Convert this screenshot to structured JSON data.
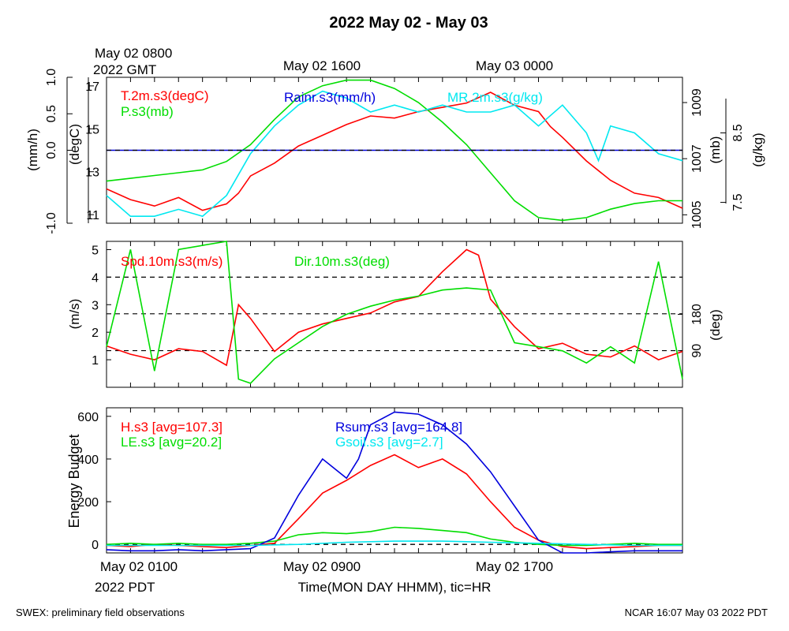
{
  "title": "2022 May 02 - May 03",
  "footer_left": "SWEX: preliminary field observations",
  "footer_right": "NCAR 16:07 May 03 2022 PDT",
  "colors": {
    "red": "#ff0000",
    "green": "#00dd00",
    "blue": "#0000dd",
    "cyan": "#00e8f0",
    "black": "#000000"
  },
  "chart_data": [
    {
      "type": "line",
      "panel": "top",
      "top_time_labels": [
        {
          "line1": "May 02 0800",
          "line2": "2022 GMT"
        },
        {
          "line1": "May 02 1600",
          "line2": ""
        },
        {
          "line1": "May 03 0000",
          "line2": ""
        }
      ],
      "x_range_hours_pdt": [
        0,
        24
      ],
      "axes": {
        "rain_mm_h": {
          "label": "(mm/h)",
          "ticks": [
            "1.0",
            "0.5",
            "0.0",
            "-1.0"
          ],
          "values": [
            1.0,
            0.5,
            0.0,
            -1.0
          ],
          "range": [
            -1.0,
            1.0
          ]
        },
        "temp_degC": {
          "label": "(degC)",
          "ticks": [
            "17",
            "15",
            "13",
            "11"
          ],
          "values": [
            17,
            15,
            13,
            11
          ],
          "range": [
            10.6,
            17.4
          ]
        },
        "pressure_mb": {
          "label": "(mb)",
          "ticks": [
            "1009",
            "1007",
            "1005"
          ],
          "values": [
            1009,
            1007,
            1005
          ],
          "range": [
            1004.7,
            1009.9
          ]
        },
        "mixing_g_kg": {
          "label": "(g/kg)",
          "ticks": [
            "8.5",
            "7.5"
          ],
          "values": [
            8.5,
            7.5
          ],
          "range": [
            7.2,
            9.3
          ]
        }
      },
      "legend": [
        {
          "text": "T.2m.s3(degC)",
          "color": "#ff0000"
        },
        {
          "text": "P.s3(mb)",
          "color": "#00dd00"
        },
        {
          "text": "Rainr.s3(mm/h)",
          "color": "#0000dd"
        },
        {
          "text": "MR.2m.s3(g/kg)",
          "color": "#00e8f0"
        }
      ],
      "series": [
        {
          "name": "T.2m.s3(degC)",
          "axis": "temp_degC",
          "color": "#ff0000",
          "x": [
            0,
            1,
            2,
            3,
            4,
            5,
            5.5,
            6,
            7,
            8,
            9,
            10,
            11,
            12,
            13,
            14,
            15,
            16,
            17,
            18,
            18.5,
            19,
            20,
            21,
            22,
            23,
            24
          ],
          "y": [
            12.2,
            11.7,
            11.4,
            11.8,
            11.2,
            11.5,
            12.0,
            12.8,
            13.4,
            14.2,
            14.7,
            15.2,
            15.6,
            15.5,
            15.8,
            16.0,
            16.2,
            16.7,
            16.1,
            15.8,
            15.1,
            14.6,
            13.5,
            12.6,
            12.0,
            11.8,
            11.3
          ]
        },
        {
          "name": "P.s3(mb)",
          "axis": "pressure_mb",
          "color": "#00dd00",
          "x": [
            0,
            1,
            2,
            3,
            4,
            5,
            6,
            7,
            8,
            9,
            10,
            11,
            12,
            13,
            14,
            15,
            16,
            17,
            18,
            19,
            20,
            21,
            22,
            23,
            24
          ],
          "y": [
            1006.2,
            1006.3,
            1006.4,
            1006.5,
            1006.6,
            1006.9,
            1007.5,
            1008.4,
            1009.2,
            1009.6,
            1009.8,
            1009.8,
            1009.5,
            1009.0,
            1008.3,
            1007.5,
            1006.5,
            1005.5,
            1004.9,
            1004.8,
            1004.9,
            1005.2,
            1005.4,
            1005.5,
            1005.5
          ]
        },
        {
          "name": "MR.2m.s3(g/kg)",
          "axis": "mixing_g_kg",
          "color": "#00e8f0",
          "x": [
            0,
            1,
            2,
            3,
            4,
            5,
            6,
            7,
            8,
            9,
            10,
            11,
            12,
            13,
            14,
            15,
            16,
            17,
            18,
            19,
            20,
            20.5,
            21,
            22,
            23,
            24
          ],
          "y": [
            7.6,
            7.3,
            7.3,
            7.4,
            7.3,
            7.6,
            8.2,
            8.6,
            8.9,
            9.1,
            9.0,
            8.8,
            8.9,
            8.8,
            8.9,
            8.8,
            8.8,
            8.9,
            8.6,
            8.9,
            8.5,
            8.1,
            8.6,
            8.5,
            8.2,
            8.1
          ]
        },
        {
          "name": "Rainr.s3(mm/h)",
          "axis": "rain_mm_h",
          "color": "#0000dd",
          "x": [
            0,
            24
          ],
          "y": [
            0,
            0
          ]
        }
      ]
    },
    {
      "type": "line",
      "panel": "middle",
      "x_range_hours_pdt": [
        0,
        24
      ],
      "axes": {
        "speed_m_s": {
          "label": "(m/s)",
          "ticks": [
            "5",
            "4",
            "3",
            "2",
            "1"
          ],
          "values": [
            5,
            4,
            3,
            2,
            1
          ],
          "range": [
            0,
            5.3
          ]
        },
        "dir_deg": {
          "label": "(deg)",
          "ticks": [
            "180",
            "90"
          ],
          "values": [
            180,
            90
          ],
          "range": [
            0,
            360
          ]
        }
      },
      "reference_lines_m_s": [
        4.0,
        2.67,
        1.33
      ],
      "legend": [
        {
          "text": "Spd.10m.s3(m/s)",
          "color": "#ff0000"
        },
        {
          "text": "Dir.10m.s3(deg)",
          "color": "#00dd00"
        }
      ],
      "series": [
        {
          "name": "Spd.10m.s3(m/s)",
          "axis": "speed_m_s",
          "color": "#ff0000",
          "x": [
            0,
            1,
            2,
            3,
            4,
            5,
            5.5,
            6,
            7,
            8,
            9,
            10,
            11,
            12,
            13,
            14,
            15,
            15.5,
            16,
            17,
            18,
            19,
            20,
            21,
            22,
            23,
            24
          ],
          "y": [
            1.5,
            1.2,
            1.0,
            1.4,
            1.3,
            0.8,
            3.0,
            2.5,
            1.3,
            2.0,
            2.3,
            2.5,
            2.7,
            3.1,
            3.3,
            4.2,
            5.0,
            4.8,
            3.2,
            2.2,
            1.4,
            1.6,
            1.2,
            1.1,
            1.5,
            1.0,
            1.3
          ]
        },
        {
          "name": "Dir.10m.s3(deg)",
          "axis": "dir_deg",
          "color": "#00dd00",
          "x": [
            0,
            1,
            2,
            3,
            4,
            5,
            5.5,
            6,
            7,
            8,
            9,
            10,
            11,
            12,
            13,
            14,
            15,
            16,
            17,
            18,
            19,
            20,
            21,
            22,
            23,
            24
          ],
          "y": [
            100,
            340,
            40,
            340,
            350,
            360,
            20,
            10,
            70,
            110,
            150,
            180,
            200,
            215,
            225,
            240,
            245,
            240,
            110,
            100,
            90,
            60,
            100,
            60,
            310,
            20
          ]
        }
      ]
    },
    {
      "type": "line",
      "panel": "bottom",
      "x_range_hours_pdt": [
        0,
        24
      ],
      "x_tick_labels": [
        {
          "line1": "May 02 0100",
          "line2": "2022 PDT"
        },
        {
          "line1": "May 02 0900",
          "line2": ""
        },
        {
          "line1": "May 02 1700",
          "line2": ""
        }
      ],
      "xlabel": "Time(MON DAY HHMM), tic=HR",
      "ylabel": "Energy Budget",
      "y_ticks": [
        0,
        200,
        400,
        600
      ],
      "ylim": [
        -40,
        640
      ],
      "legend": [
        {
          "text": "H.s3 [avg=107.3]",
          "color": "#ff0000"
        },
        {
          "text": "LE.s3 [avg=20.2]",
          "color": "#00dd00"
        },
        {
          "text": "Rsum.s3 [avg=164.8]",
          "color": "#0000dd"
        },
        {
          "text": "Gsoil.s3 [avg=2.7]",
          "color": "#00e8f0"
        }
      ],
      "series": [
        {
          "name": "H.s3 [avg=107.3]",
          "color": "#ff0000",
          "x": [
            0,
            1,
            2,
            3,
            4,
            5,
            6,
            7,
            8,
            9,
            10,
            11,
            12,
            13,
            14,
            15,
            16,
            17,
            18,
            19,
            20,
            21,
            22,
            23,
            24
          ],
          "y": [
            -5,
            -10,
            0,
            -5,
            -10,
            -15,
            -5,
            5,
            120,
            240,
            300,
            370,
            420,
            360,
            400,
            330,
            200,
            80,
            20,
            -10,
            -20,
            -15,
            -10,
            -5,
            -5
          ]
        },
        {
          "name": "LE.s3 [avg=20.2]",
          "color": "#00dd00",
          "x": [
            0,
            1,
            2,
            3,
            4,
            5,
            6,
            7,
            8,
            9,
            10,
            11,
            12,
            13,
            14,
            15,
            16,
            17,
            18,
            19,
            20,
            21,
            22,
            23,
            24
          ],
          "y": [
            0,
            5,
            0,
            5,
            0,
            0,
            5,
            15,
            45,
            55,
            50,
            60,
            80,
            75,
            65,
            55,
            25,
            10,
            0,
            -5,
            -5,
            0,
            5,
            0,
            0
          ]
        },
        {
          "name": "Rsum.s3 [avg=164.8]",
          "color": "#0000dd",
          "x": [
            0,
            1,
            2,
            3,
            4,
            5,
            6,
            7,
            8,
            9,
            10,
            10.5,
            11,
            12,
            13,
            14,
            15,
            16,
            17,
            18,
            19,
            20,
            21,
            22,
            23,
            24
          ],
          "y": [
            -25,
            -30,
            -30,
            -25,
            -30,
            -25,
            -20,
            30,
            230,
            400,
            310,
            400,
            560,
            620,
            610,
            560,
            470,
            340,
            180,
            20,
            -40,
            -40,
            -35,
            -30,
            -30,
            -30
          ]
        },
        {
          "name": "Gsoil.s3 [avg=2.7]",
          "color": "#00e8f0",
          "x": [
            0,
            2,
            4,
            6,
            8,
            10,
            12,
            14,
            16,
            18,
            20,
            22,
            24
          ],
          "y": [
            -5,
            -5,
            -5,
            -5,
            0,
            10,
            15,
            15,
            10,
            5,
            0,
            -5,
            -5
          ]
        }
      ]
    }
  ]
}
